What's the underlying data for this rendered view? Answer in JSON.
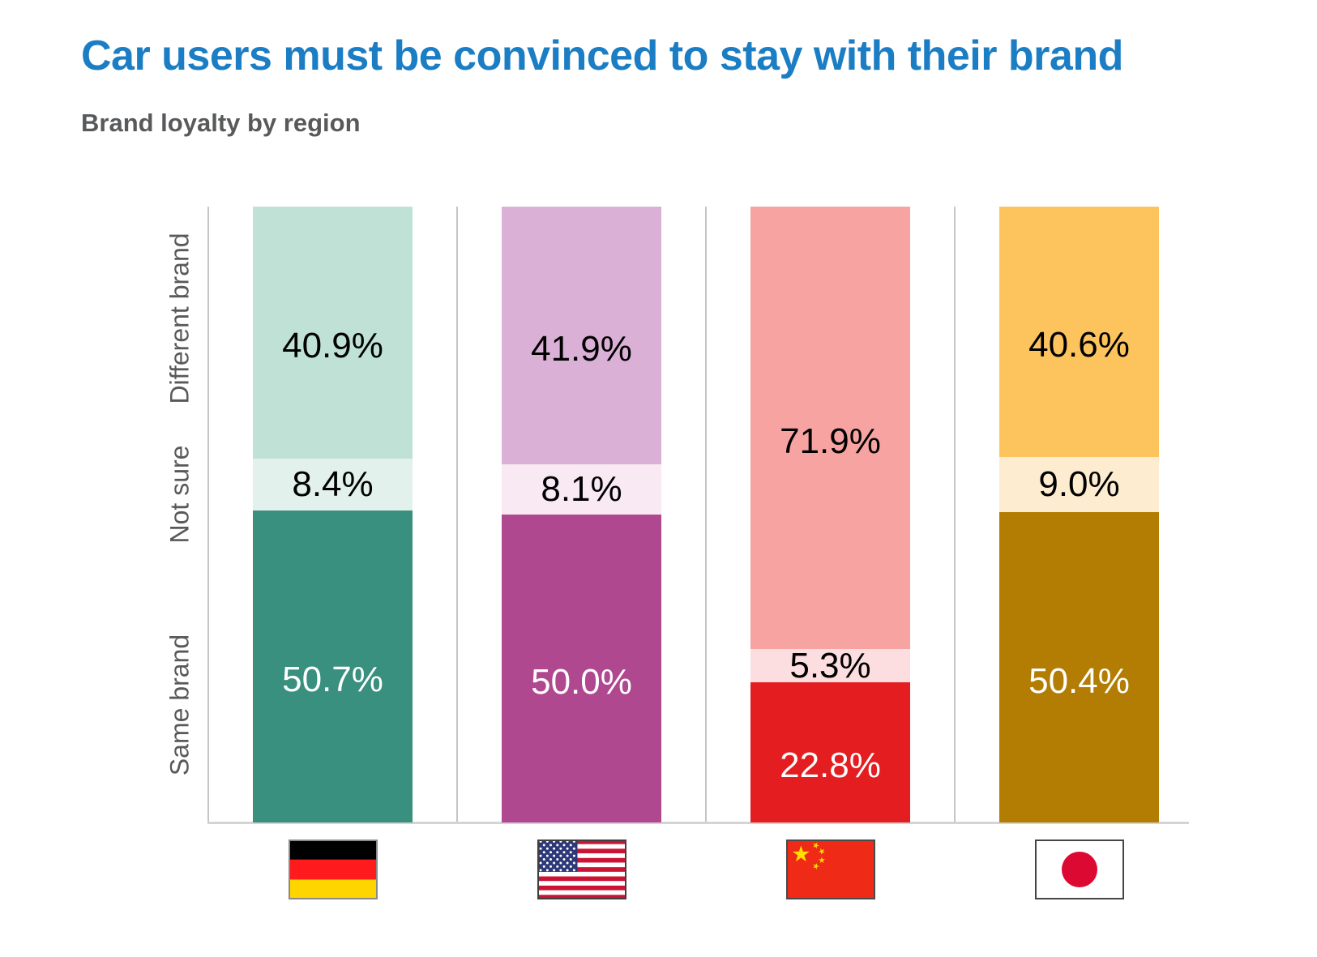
{
  "header": {
    "title": "Car users must be convinced to stay with their brand",
    "title_color": "#1b7ec4",
    "subtitle": "Brand loyalty by region",
    "subtitle_color": "#58595b"
  },
  "chart_data": {
    "type": "bar",
    "variant": "stacked-100-percent-vertical",
    "title": "Car users must be convinced to stay with their brand",
    "subtitle": "Brand loyalty by region",
    "unit": "%",
    "ylim": [
      0,
      100
    ],
    "grid": false,
    "legend_position": "left-axis-row-labels",
    "row_labels": [
      "Different brand",
      "Not sure",
      "Same brand"
    ],
    "axis_colors": {
      "axis_line": "#c5c5c5",
      "baseline": "#d4d4d4",
      "label_text": "#595959"
    },
    "categories": [
      "Germany",
      "United States",
      "China",
      "Japan"
    ],
    "series": [
      {
        "name": "Different brand",
        "values": [
          40.9,
          41.9,
          71.9,
          40.6
        ]
      },
      {
        "name": "Not sure",
        "values": [
          8.4,
          8.1,
          5.3,
          9.0
        ]
      },
      {
        "name": "Same brand",
        "values": [
          50.7,
          50.0,
          22.8,
          50.4
        ]
      }
    ],
    "columns": [
      {
        "category": "Germany",
        "flag": "germany",
        "segments": [
          {
            "name": "Different brand",
            "value": 40.9,
            "label": "40.9%",
            "color": "#bfe1d6",
            "label_color": "#000000"
          },
          {
            "name": "Not sure",
            "value": 8.4,
            "label": "8.4%",
            "color": "#e3f1ec",
            "label_color": "#000000"
          },
          {
            "name": "Same brand",
            "value": 50.7,
            "label": "50.7%",
            "color": "#39907e",
            "label_color": "#ffffff"
          }
        ]
      },
      {
        "category": "United States",
        "flag": "usa",
        "segments": [
          {
            "name": "Different brand",
            "value": 41.9,
            "label": "41.9%",
            "color": "#dbb0d6",
            "label_color": "#000000"
          },
          {
            "name": "Not sure",
            "value": 8.1,
            "label": "8.1%",
            "color": "#f8e9f3",
            "label_color": "#000000"
          },
          {
            "name": "Same brand",
            "value": 50.0,
            "label": "50.0%",
            "color": "#b04890",
            "label_color": "#ffffff"
          }
        ]
      },
      {
        "category": "China",
        "flag": "china",
        "segments": [
          {
            "name": "Different brand",
            "value": 71.9,
            "label": "71.9%",
            "color": "#f6a3a1",
            "label_color": "#000000"
          },
          {
            "name": "Not sure",
            "value": 5.3,
            "label": "5.3%",
            "color": "#fcdee0",
            "label_color": "#000000"
          },
          {
            "name": "Same brand",
            "value": 22.8,
            "label": "22.8%",
            "color": "#e41d20",
            "label_color": "#ffffff"
          }
        ]
      },
      {
        "category": "Japan",
        "flag": "japan",
        "segments": [
          {
            "name": "Different brand",
            "value": 40.6,
            "label": "40.6%",
            "color": "#fdc45e",
            "label_color": "#000000"
          },
          {
            "name": "Not sure",
            "value": 9.0,
            "label": "9.0%",
            "color": "#fdeccf",
            "label_color": "#000000"
          },
          {
            "name": "Same brand",
            "value": 50.4,
            "label": "50.4%",
            "color": "#b27d02",
            "label_color": "#ffffff"
          }
        ]
      }
    ],
    "flag_colors": {
      "germany": {
        "black": "#000000",
        "red": "#ff1a1d",
        "gold": "#ffd500",
        "border": "#8a8a8a"
      },
      "usa": {
        "red": "#cb1433",
        "white": "#ffffff",
        "navy": "#2c3878",
        "border": "#3f3f3f"
      },
      "china": {
        "red": "#ef2a16",
        "gold": "#ffde00",
        "border": "#4a4a4a"
      },
      "japan": {
        "white": "#ffffff",
        "disc_red": "#dc0a32",
        "border": "#454545"
      }
    }
  }
}
